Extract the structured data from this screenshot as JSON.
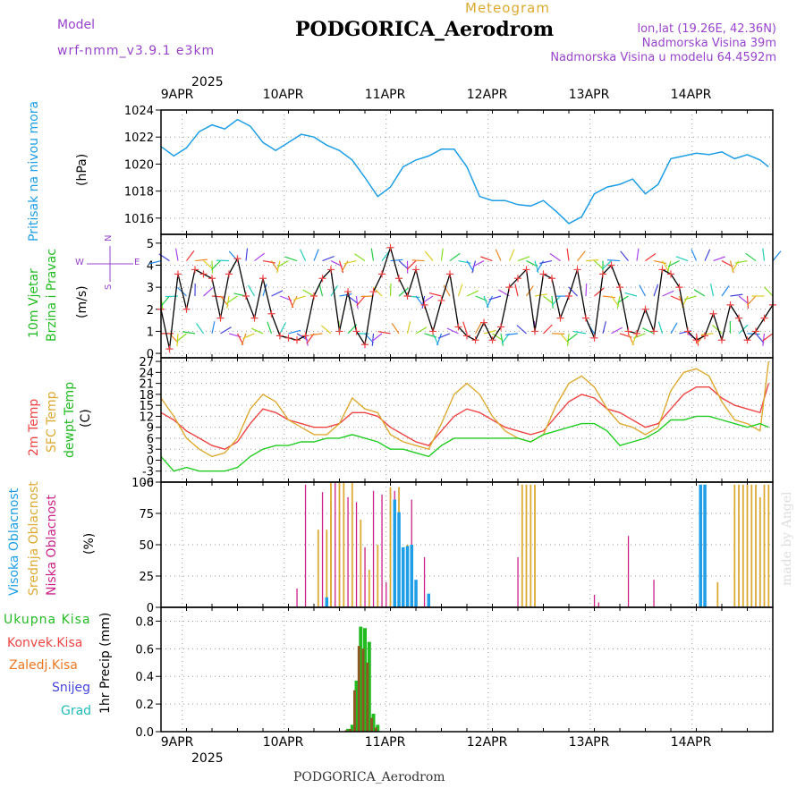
{
  "header": {
    "model_label": "Model",
    "model_name": "wrf-nmm_v3.9.1 e3km",
    "meteogram": "Meteogram",
    "station": "PODGORICA_Aerodrom",
    "lonlat": "lon,lat (19.26E, 42.36N)",
    "elevation": "Nadmorska Visina 39m",
    "model_elevation": "Nadmorska Visina u modelu 64.4592m"
  },
  "footer": {
    "station": "PODGORICA_Aerodrom",
    "credit": "made by Angel"
  },
  "colors": {
    "pressure": "#1e9ee6",
    "wind_label": "#22bb22",
    "temp2m": "#ee4444",
    "sfc": "#ddaa33",
    "dewpt": "#22cc22",
    "high_cloud": "#1e9ee6",
    "mid_cloud": "#ddaa33",
    "low_cloud": "#cc2288",
    "total_precip": "#22bb22",
    "conv_precip": "#ee4444",
    "frozen": "#ee7722",
    "snow": "#4444dd",
    "graupel": "#22bbbb",
    "dir_label": "#9944cc"
  },
  "chart_data": [
    {
      "type": "line",
      "name": "pressure",
      "title": "Pritisak na nivou mora",
      "ylabel": "(hPa)",
      "ylim": [
        1014.8,
        1024
      ],
      "yticks": [
        1016,
        1018,
        1020,
        1022,
        1024
      ],
      "x_hours": [
        0,
        3,
        6,
        9,
        12,
        15,
        18,
        21,
        24,
        27,
        30,
        33,
        36,
        39,
        42,
        45,
        48,
        51,
        54,
        57,
        60,
        63,
        66,
        69,
        72,
        75,
        78,
        81,
        84,
        87,
        90,
        93,
        96,
        99,
        102,
        105,
        108,
        111,
        114,
        117,
        120,
        123,
        126,
        129,
        132,
        135,
        138,
        141,
        143
      ],
      "values": [
        1021.3,
        1020.6,
        1021.2,
        1022.4,
        1022.9,
        1022.6,
        1023.3,
        1022.8,
        1021.6,
        1021.0,
        1021.6,
        1022.2,
        1022.0,
        1021.4,
        1021.0,
        1020.3,
        1019.0,
        1017.6,
        1018.3,
        1019.8,
        1020.3,
        1020.6,
        1021.1,
        1021.1,
        1019.8,
        1017.6,
        1017.3,
        1017.3,
        1017.0,
        1016.9,
        1017.3,
        1016.5,
        1015.6,
        1016.1,
        1017.8,
        1018.3,
        1018.5,
        1018.9,
        1017.8,
        1018.5,
        1020.4,
        1020.6,
        1020.8,
        1020.7,
        1020.9,
        1020.4,
        1020.7,
        1020.3,
        1019.8
      ]
    },
    {
      "type": "line",
      "name": "wind",
      "title": "10m Vjetar",
      "title2": "Brzina i Pravac",
      "ylabel": "(m/s)",
      "ylim": [
        -0.2,
        5.4
      ],
      "yticks": [
        0,
        1,
        2,
        3,
        4,
        5
      ],
      "compass": {
        "n": "N",
        "s": "S",
        "e": "E",
        "w": "W"
      },
      "x_hours": [
        0,
        2,
        4,
        6,
        8,
        10,
        12,
        14,
        16,
        18,
        20,
        22,
        24,
        26,
        28,
        30,
        32,
        34,
        36,
        38,
        40,
        42,
        44,
        46,
        48,
        50,
        52,
        54,
        56,
        58,
        60,
        62,
        64,
        66,
        68,
        70,
        72,
        74,
        76,
        78,
        80,
        82,
        84,
        86,
        88,
        90,
        92,
        94,
        96,
        98,
        100,
        102,
        104,
        106,
        108,
        110,
        112,
        114,
        116,
        118,
        120,
        122,
        124,
        126,
        128,
        130,
        132,
        134,
        136,
        138,
        140,
        142,
        144
      ],
      "values": [
        2.0,
        0.2,
        3.6,
        2.0,
        3.8,
        3.6,
        3.4,
        1.6,
        3.6,
        4.3,
        2.6,
        1.6,
        3.4,
        1.8,
        0.8,
        0.7,
        0.6,
        0.8,
        2.6,
        3.4,
        3.8,
        1.0,
        2.8,
        1.0,
        0.4,
        2.8,
        3.6,
        4.8,
        3.4,
        2.6,
        3.8,
        2.2,
        1.0,
        2.4,
        3.6,
        1.2,
        0.8,
        0.6,
        1.4,
        0.6,
        1.2,
        3.0,
        3.4,
        3.8,
        1.0,
        3.6,
        3.4,
        1.6,
        2.6,
        3.8,
        1.6,
        0.7,
        3.6,
        4.0,
        3.0,
        1.0,
        0.9,
        2.0,
        1.0,
        3.8,
        3.6,
        3.0,
        1.0,
        0.6,
        0.8,
        1.8,
        0.6,
        2.2,
        1.6,
        0.6,
        1.0,
        1.6,
        2.2
      ]
    },
    {
      "type": "line",
      "name": "temperature",
      "title": "2m Temp",
      "title2": "SFC Temp",
      "title3": "dewpt Temp",
      "ylabel": "(C)",
      "ylim": [
        -6,
        28
      ],
      "yticks": [
        -6,
        -3,
        0,
        3,
        6,
        9,
        12,
        15,
        18,
        21,
        24,
        27
      ],
      "x_hours": [
        0,
        3,
        6,
        9,
        12,
        15,
        18,
        21,
        24,
        27,
        30,
        33,
        36,
        39,
        42,
        45,
        48,
        51,
        54,
        57,
        60,
        63,
        66,
        69,
        72,
        75,
        78,
        81,
        84,
        87,
        90,
        93,
        96,
        99,
        102,
        105,
        108,
        111,
        114,
        117,
        120,
        123,
        126,
        129,
        132,
        135,
        138,
        141,
        143
      ],
      "series": [
        {
          "name": "2m Temp",
          "values": [
            13,
            11,
            8,
            6,
            4,
            3,
            5,
            10,
            14,
            13,
            11,
            10,
            9,
            9,
            10,
            13,
            13,
            12,
            9,
            7,
            5,
            4,
            8,
            12,
            14,
            13,
            11,
            9,
            8,
            7,
            8,
            12,
            16,
            18,
            17,
            14,
            13,
            11,
            9,
            10,
            14,
            18,
            20,
            20,
            17,
            15,
            14,
            13,
            21
          ]
        },
        {
          "name": "SFC Temp",
          "values": [
            17,
            12,
            6,
            3,
            1,
            2,
            6,
            14,
            18,
            16,
            11,
            9,
            7,
            7,
            10,
            17,
            14,
            13,
            7,
            5,
            4,
            3,
            10,
            18,
            21,
            18,
            12,
            8,
            6,
            5,
            7,
            15,
            21,
            23,
            20,
            14,
            10,
            9,
            7,
            9,
            19,
            24,
            25,
            23,
            16,
            11,
            10,
            8,
            27
          ]
        },
        {
          "name": "dewpt Temp",
          "values": [
            1,
            -3,
            -2,
            -3,
            -3,
            -3,
            -2,
            1,
            3,
            4,
            4,
            5,
            5,
            6,
            6,
            7,
            6,
            5,
            3,
            3,
            2,
            1,
            4,
            6,
            6,
            6,
            6,
            6,
            6,
            5,
            7,
            8,
            9,
            10,
            10,
            8,
            4,
            5,
            6,
            8,
            11,
            11,
            12,
            12,
            11,
            10,
            9,
            10,
            9
          ]
        }
      ]
    },
    {
      "type": "bar",
      "name": "clouds",
      "title": "Visoka Oblacnost",
      "title2": "Srednja Oblacnost",
      "title3": "Niska Oblacnost",
      "ylabel": "(%)",
      "ylim": [
        0,
        100
      ],
      "yticks": [
        0,
        25,
        50,
        75,
        100
      ],
      "series": [
        {
          "name": "Niska Oblacnost",
          "x_hours": [
            32,
            34,
            38,
            40,
            41,
            42,
            44,
            46,
            48,
            50,
            52,
            53,
            55,
            57,
            58,
            59,
            62,
            84,
            102,
            103,
            110,
            116
          ],
          "values": [
            15,
            98,
            92,
            86,
            100,
            76,
            88,
            84,
            48,
            93,
            90,
            20,
            93,
            30,
            18,
            86,
            40,
            40,
            10,
            4,
            57,
            22
          ]
        },
        {
          "name": "Srednja Oblacnost",
          "x_hours": [
            37,
            39,
            40,
            42,
            43,
            45,
            47,
            49,
            51,
            54,
            56,
            58,
            85,
            86,
            87,
            88,
            131,
            135,
            136,
            137,
            138,
            139,
            140,
            141,
            142,
            143
          ],
          "values": [
            62,
            62,
            100,
            100,
            100,
            100,
            70,
            30,
            50,
            96,
            96,
            50,
            98,
            98,
            98,
            98,
            20,
            98,
            98,
            98,
            98,
            98,
            98,
            88,
            98,
            98
          ]
        },
        {
          "name": "Visoka Oblacnost",
          "x_hours": [
            39,
            55,
            56,
            57,
            58,
            59,
            60,
            63,
            127,
            128
          ],
          "values": [
            8,
            86,
            76,
            48,
            49,
            50,
            22,
            11,
            98,
            98
          ]
        }
      ]
    },
    {
      "type": "bar",
      "name": "precipitation",
      "title": "Ukupna Kisa",
      "title2": "Konvek.Kisa",
      "title3": "Zaledj.Kisa",
      "title4": "Snijeg",
      "title5": "Grad",
      "ylabel": "1hr Precip (mm)",
      "ylim": [
        0,
        0.9
      ],
      "yticks": [
        0,
        0.2,
        0.4,
        0.6,
        0.8
      ],
      "x_hours": [
        44,
        45,
        46,
        47,
        48,
        49,
        50,
        51,
        52
      ],
      "series": [
        {
          "name": "Ukupna Kisa",
          "values": [
            0.02,
            0.05,
            0.37,
            0.76,
            0.75,
            0.65,
            0.13,
            0.05,
            0
          ]
        },
        {
          "name": "Konvek.Kisa",
          "values": [
            0.01,
            0.02,
            0.3,
            0.62,
            0.6,
            0.5,
            0.1,
            0.03,
            0
          ]
        }
      ]
    }
  ],
  "x_axis": {
    "year": "2025",
    "labels": [
      {
        "hour": 5,
        "text": "9APR"
      },
      {
        "hour": 29,
        "text": "10APR"
      },
      {
        "hour": 53,
        "text": "11APR"
      },
      {
        "hour": 77,
        "text": "12APR"
      },
      {
        "hour": 101,
        "text": "13APR"
      },
      {
        "hour": 125,
        "text": "14APR"
      }
    ],
    "hours_total": 144
  }
}
